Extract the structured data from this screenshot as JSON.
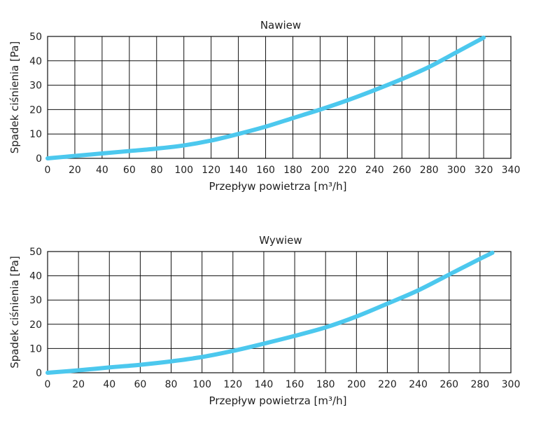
{
  "chart_data": [
    {
      "type": "line",
      "title": "Nawiew",
      "xlabel": "Przepływ powietrza [m³/h]",
      "ylabel": "Spadek ciśnienia [Pa]",
      "xlim": [
        0,
        340
      ],
      "ylim": [
        0,
        50
      ],
      "xticks": [
        0,
        20,
        40,
        60,
        80,
        100,
        120,
        140,
        160,
        180,
        200,
        220,
        240,
        260,
        280,
        300,
        320,
        340
      ],
      "yticks": [
        0,
        10,
        20,
        30,
        40,
        50
      ],
      "grid": true,
      "series": [
        {
          "color": "#4cc8ee",
          "x": [
            0,
            20,
            40,
            60,
            80,
            100,
            120,
            140,
            160,
            180,
            200,
            220,
            240,
            260,
            280,
            300,
            320
          ],
          "y": [
            0,
            1,
            2,
            3,
            4,
            5.3,
            7.3,
            10,
            13,
            16.5,
            20,
            23.8,
            28,
            32.5,
            37.5,
            43.5,
            49.5
          ]
        }
      ]
    },
    {
      "type": "line",
      "title": "Wywiew",
      "xlabel": "Przepływ powietrza [m³/h]",
      "ylabel": "Spadek ciśnienia [Pa]",
      "xlim": [
        0,
        300
      ],
      "ylim": [
        0,
        50
      ],
      "xticks": [
        0,
        20,
        40,
        60,
        80,
        100,
        120,
        140,
        160,
        180,
        200,
        220,
        240,
        260,
        280,
        300
      ],
      "yticks": [
        0,
        10,
        20,
        30,
        40,
        50
      ],
      "grid": true,
      "series": [
        {
          "color": "#4cc8ee",
          "x": [
            0,
            20,
            40,
            60,
            80,
            100,
            120,
            140,
            160,
            180,
            200,
            220,
            240,
            260,
            280,
            288
          ],
          "y": [
            0,
            1,
            2.2,
            3.3,
            4.7,
            6.5,
            9,
            12,
            15.2,
            18.7,
            23.2,
            28.5,
            34,
            40.5,
            47,
            49.5
          ]
        }
      ]
    }
  ]
}
